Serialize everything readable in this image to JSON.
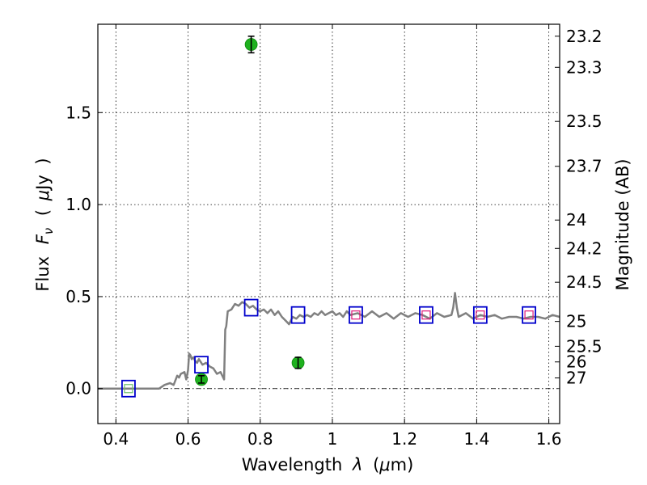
{
  "chart_data": {
    "type": "scatter",
    "xlabel_parts": [
      "Wavelength",
      "λ",
      "(",
      "μ",
      "m)"
    ],
    "ylabel_parts": [
      "Flux",
      "F",
      "ν",
      "(",
      "μ",
      "Jy",
      ")"
    ],
    "y2label": "Magnitude (AB)",
    "xlim": [
      0.35,
      1.63
    ],
    "ylim": [
      -0.19,
      1.98
    ],
    "xticks": [
      {
        "value": 0.4,
        "label": "0.4"
      },
      {
        "value": 0.6,
        "label": "0.6"
      },
      {
        "value": 0.8,
        "label": "0.8"
      },
      {
        "value": 1.0,
        "label": "1"
      },
      {
        "value": 1.2,
        "label": "1.2"
      },
      {
        "value": 1.4,
        "label": "1.4"
      },
      {
        "value": 1.6,
        "label": "1.6"
      }
    ],
    "yticks": [
      {
        "value": 0.0,
        "label": "0.0"
      },
      {
        "value": 0.5,
        "label": "0.5"
      },
      {
        "value": 1.0,
        "label": "1.0"
      },
      {
        "value": 1.5,
        "label": "1.5"
      }
    ],
    "y2ticks": [
      {
        "label": "23.2",
        "flux": 1.915
      },
      {
        "label": "23.3",
        "flux": 1.746
      },
      {
        "label": "23.5",
        "flux": 1.452
      },
      {
        "label": "23.7",
        "flux": 1.208
      },
      {
        "label": "24",
        "flux": 0.916
      },
      {
        "label": "24.2",
        "flux": 0.762
      },
      {
        "label": "24.5",
        "flux": 0.578
      },
      {
        "label": "25",
        "flux": 0.365
      },
      {
        "label": "25.5",
        "flux": 0.23
      },
      {
        "label": "26",
        "flux": 0.145
      },
      {
        "label": "27",
        "flux": 0.058
      }
    ],
    "grid": true,
    "zero_line": true,
    "colors": {
      "model": "#808080",
      "observed": "#1fb11f",
      "model_box": "#0000cc",
      "nir_box": "#e0197a",
      "uv_box": "#6fbf6f"
    },
    "model_sed": {
      "x": [
        0.35,
        0.5,
        0.52,
        0.535,
        0.55,
        0.56,
        0.57,
        0.575,
        0.58,
        0.59,
        0.595,
        0.6,
        0.603,
        0.607,
        0.61,
        0.615,
        0.62,
        0.625,
        0.63,
        0.64,
        0.65,
        0.66,
        0.67,
        0.68,
        0.69,
        0.695,
        0.7,
        0.703,
        0.706,
        0.71,
        0.72,
        0.73,
        0.74,
        0.75,
        0.76,
        0.77,
        0.78,
        0.79,
        0.8,
        0.81,
        0.82,
        0.83,
        0.84,
        0.85,
        0.86,
        0.87,
        0.875,
        0.88,
        0.885,
        0.89,
        0.9,
        0.91,
        0.92,
        0.93,
        0.94,
        0.95,
        0.96,
        0.97,
        0.98,
        0.99,
        1.0,
        1.01,
        1.02,
        1.03,
        1.04,
        1.05,
        1.07,
        1.09,
        1.11,
        1.13,
        1.15,
        1.17,
        1.19,
        1.21,
        1.23,
        1.25,
        1.27,
        1.29,
        1.31,
        1.33,
        1.335,
        1.34,
        1.345,
        1.35,
        1.37,
        1.39,
        1.41,
        1.43,
        1.45,
        1.47,
        1.49,
        1.51,
        1.53,
        1.55,
        1.57,
        1.59,
        1.61,
        1.63
      ],
      "y": [
        0.0,
        0.0,
        0.0,
        0.02,
        0.03,
        0.02,
        0.07,
        0.06,
        0.08,
        0.09,
        0.05,
        0.1,
        0.19,
        0.18,
        0.16,
        0.17,
        0.15,
        0.14,
        0.16,
        0.13,
        0.14,
        0.12,
        0.11,
        0.08,
        0.09,
        0.07,
        0.05,
        0.32,
        0.34,
        0.42,
        0.43,
        0.46,
        0.45,
        0.47,
        0.46,
        0.44,
        0.45,
        0.43,
        0.42,
        0.43,
        0.41,
        0.43,
        0.4,
        0.42,
        0.39,
        0.37,
        0.36,
        0.35,
        0.37,
        0.39,
        0.38,
        0.4,
        0.39,
        0.4,
        0.39,
        0.41,
        0.4,
        0.42,
        0.4,
        0.41,
        0.42,
        0.4,
        0.41,
        0.39,
        0.42,
        0.4,
        0.41,
        0.39,
        0.42,
        0.39,
        0.41,
        0.38,
        0.41,
        0.39,
        0.41,
        0.4,
        0.38,
        0.41,
        0.39,
        0.4,
        0.44,
        0.52,
        0.44,
        0.39,
        0.41,
        0.38,
        0.4,
        0.39,
        0.4,
        0.38,
        0.39,
        0.39,
        0.38,
        0.39,
        0.39,
        0.38,
        0.4,
        0.39
      ]
    },
    "model_photometry": [
      {
        "x": 0.435,
        "y": 0.0
      },
      {
        "x": 0.637,
        "y": 0.13
      },
      {
        "x": 0.775,
        "y": 0.44
      },
      {
        "x": 0.905,
        "y": 0.4
      },
      {
        "x": 1.065,
        "y": 0.4
      },
      {
        "x": 1.26,
        "y": 0.4
      },
      {
        "x": 1.41,
        "y": 0.4
      },
      {
        "x": 1.545,
        "y": 0.4
      }
    ],
    "observed": [
      {
        "x": 0.637,
        "y": 0.05,
        "err": 0.02
      },
      {
        "x": 0.775,
        "y": 1.87,
        "err": 0.045
      },
      {
        "x": 0.905,
        "y": 0.14,
        "err": 0.03
      }
    ]
  }
}
